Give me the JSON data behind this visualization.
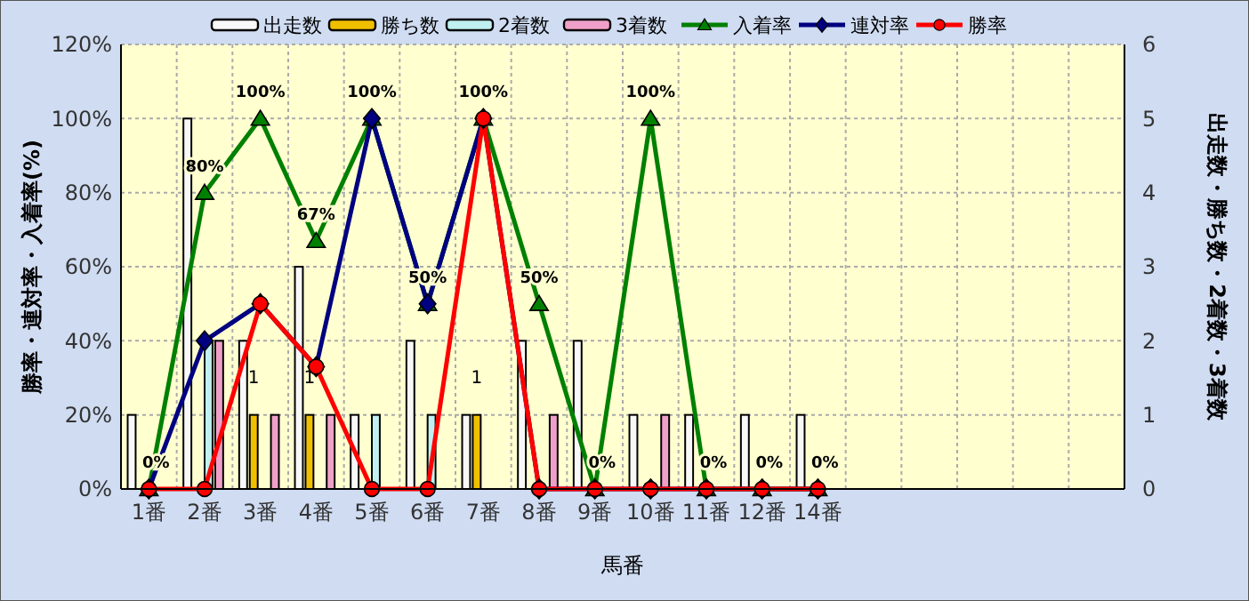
{
  "chart_data": {
    "type": "bar",
    "xlabel": "馬番",
    "ylabel": "勝率・連対率・入着率(%)",
    "y2label": "出走数・勝ち数・2着数・3着数",
    "categories": [
      "1番",
      "2番",
      "3番",
      "4番",
      "5番",
      "6番",
      "7番",
      "8番",
      "9番",
      "10番",
      "11番",
      "12番",
      "14番",
      null,
      null,
      null,
      null,
      null
    ],
    "ylim": [
      0,
      120
    ],
    "yticks": [
      {
        "value": 0,
        "label": "0%"
      },
      {
        "value": 20,
        "label": "20%"
      },
      {
        "value": 40,
        "label": "40%"
      },
      {
        "value": 60,
        "label": "60%"
      },
      {
        "value": 80,
        "label": "80%"
      },
      {
        "value": 100,
        "label": "100%"
      },
      {
        "value": 120,
        "label": "120%"
      }
    ],
    "y2lim": [
      0,
      6
    ],
    "y2ticks": [
      0,
      1,
      2,
      3,
      4,
      5,
      6
    ],
    "grid": true,
    "legend": "top",
    "series": [
      {
        "name": "出走数",
        "type": "bar",
        "axis": "y2",
        "color": "#f8f8f8",
        "values": [
          1,
          5,
          2,
          3,
          1,
          2,
          1,
          2,
          2,
          1,
          1,
          1,
          1,
          null,
          null,
          null,
          null,
          null
        ]
      },
      {
        "name": "勝ち数",
        "type": "bar",
        "axis": "y2",
        "color": "#f0c000",
        "values": [
          0,
          0,
          1,
          1,
          0,
          0,
          1,
          0,
          0,
          0,
          0,
          0,
          0,
          null,
          null,
          null,
          null,
          null
        ],
        "value_labels": [
          null,
          null,
          "1",
          "1",
          null,
          null,
          "1",
          null,
          null,
          null,
          null,
          null,
          null,
          null,
          null,
          null,
          null,
          null
        ]
      },
      {
        "name": "2着数",
        "type": "bar",
        "axis": "y2",
        "color": "#c0f0f0",
        "values": [
          0,
          2,
          0,
          0,
          1,
          1,
          0,
          0,
          0,
          0,
          0,
          0,
          0,
          null,
          null,
          null,
          null,
          null
        ]
      },
      {
        "name": "3着数",
        "type": "bar",
        "axis": "y2",
        "color": "#f0a0c8",
        "values": [
          0,
          2,
          1,
          1,
          0,
          0,
          0,
          1,
          0,
          1,
          0,
          0,
          0,
          null,
          null,
          null,
          null,
          null
        ]
      },
      {
        "name": "入着率",
        "type": "line",
        "color": "#008000",
        "marker": "triangle",
        "values": [
          0,
          80,
          100,
          67,
          100,
          50,
          100,
          50,
          0,
          100,
          0,
          0,
          0,
          null,
          null,
          null,
          null,
          null
        ],
        "value_labels": [
          "0%",
          "80%",
          "100%",
          "67%",
          "100%",
          "50%",
          "100%",
          "50%",
          "0%",
          "100%",
          "0%",
          "0%",
          "0%",
          null,
          null,
          null,
          null,
          null
        ]
      },
      {
        "name": "連対率",
        "type": "line",
        "color": "#000080",
        "marker": "diamond",
        "values": [
          0,
          40,
          50,
          33,
          100,
          50,
          100,
          0,
          0,
          0,
          0,
          0,
          0,
          null,
          null,
          null,
          null,
          null
        ]
      },
      {
        "name": "勝率",
        "type": "line",
        "color": "#ff0000",
        "marker": "circle",
        "values": [
          0,
          0,
          50,
          33,
          0,
          0,
          100,
          0,
          0,
          0,
          0,
          0,
          0,
          null,
          null,
          null,
          null,
          null
        ]
      }
    ]
  }
}
